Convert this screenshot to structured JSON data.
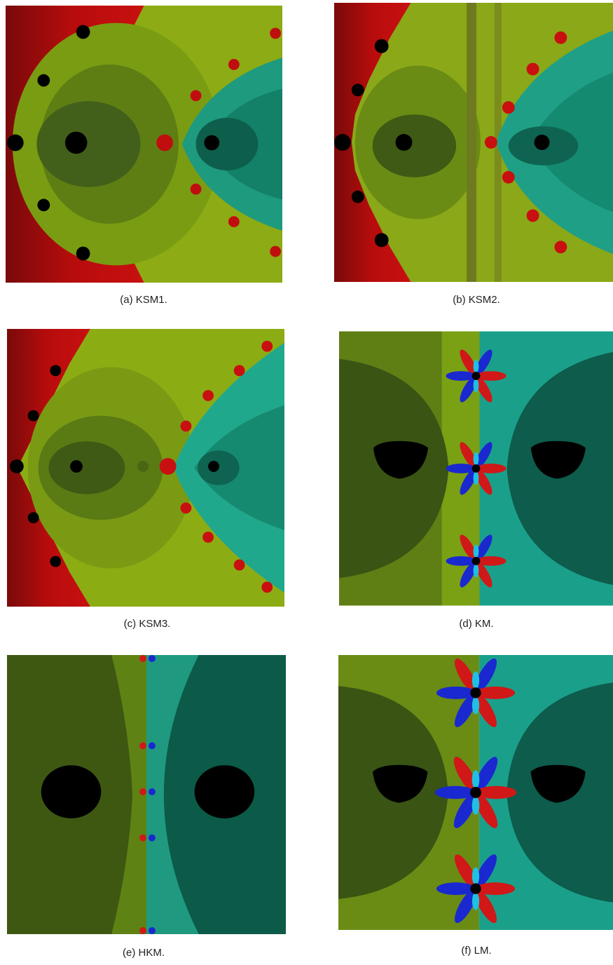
{
  "figure": {
    "panels": [
      {
        "caption": "(a) KSM1."
      },
      {
        "caption": "(b) KSM2."
      },
      {
        "caption": "(c) KSM3."
      },
      {
        "caption": "(d) KM."
      },
      {
        "caption": "(e) HKM."
      },
      {
        "caption": "(f) LM."
      }
    ]
  }
}
